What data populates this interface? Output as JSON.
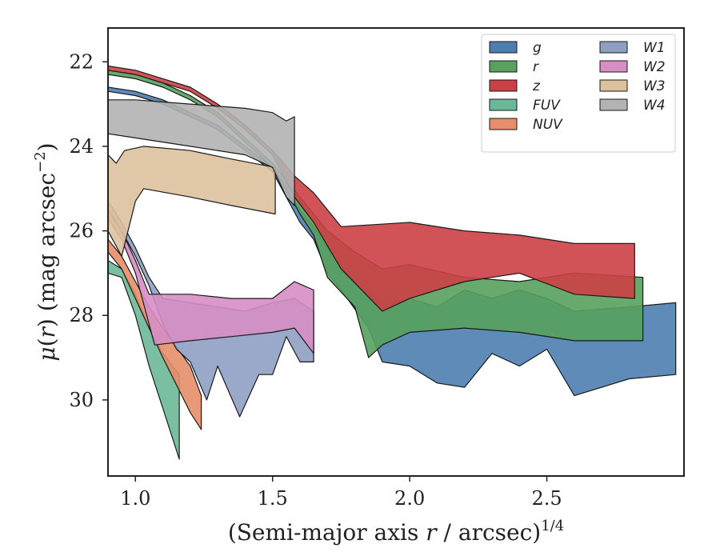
{
  "chart_data": {
    "type": "area",
    "xlabel": "(Semi-major axis r / arcsec)^1/4",
    "ylabel": "μ(r) (mag arcsec^-2)",
    "xlim": [
      0.9,
      3.0
    ],
    "ylim": [
      31.8,
      21.2
    ],
    "y_inverted": true,
    "xticks": [
      1.0,
      1.5,
      2.0,
      2.5
    ],
    "yticks": [
      22,
      24,
      26,
      28,
      30
    ],
    "grid": false,
    "legend": "top-right, 2 columns",
    "series": [
      {
        "name": "g",
        "color": "#4c7eb0",
        "upper": [
          [
            0.9,
            22.6
          ],
          [
            1.0,
            22.7
          ],
          [
            1.1,
            22.9
          ],
          [
            1.2,
            23.2
          ],
          [
            1.3,
            23.5
          ],
          [
            1.4,
            24.0
          ],
          [
            1.5,
            24.5
          ],
          [
            1.55,
            25.0
          ],
          [
            1.6,
            25.5
          ],
          [
            1.65,
            25.9
          ],
          [
            1.7,
            26.4
          ],
          [
            1.75,
            26.8
          ],
          [
            1.85,
            27.4
          ],
          [
            1.9,
            27.7
          ],
          [
            2.0,
            27.6
          ],
          [
            2.1,
            27.8
          ],
          [
            2.2,
            27.4
          ],
          [
            2.3,
            27.6
          ],
          [
            2.4,
            27.4
          ],
          [
            2.5,
            27.6
          ],
          [
            2.6,
            27.9
          ],
          [
            2.8,
            27.8
          ],
          [
            2.97,
            27.7
          ]
        ],
        "lower": [
          [
            0.9,
            22.7
          ],
          [
            1.0,
            22.8
          ],
          [
            1.1,
            23.0
          ],
          [
            1.2,
            23.3
          ],
          [
            1.3,
            23.6
          ],
          [
            1.4,
            24.1
          ],
          [
            1.5,
            24.6
          ],
          [
            1.55,
            25.2
          ],
          [
            1.6,
            25.8
          ],
          [
            1.65,
            26.2
          ],
          [
            1.7,
            27.0
          ],
          [
            1.75,
            27.4
          ],
          [
            1.85,
            28.3
          ],
          [
            1.9,
            29.1
          ],
          [
            2.0,
            29.2
          ],
          [
            2.1,
            29.6
          ],
          [
            2.2,
            29.7
          ],
          [
            2.3,
            28.9
          ],
          [
            2.4,
            29.2
          ],
          [
            2.5,
            28.8
          ],
          [
            2.6,
            29.9
          ],
          [
            2.8,
            29.5
          ],
          [
            2.97,
            29.4
          ]
        ]
      },
      {
        "name": "r",
        "color": "#58a15e",
        "upper": [
          [
            0.9,
            22.2
          ],
          [
            1.0,
            22.3
          ],
          [
            1.1,
            22.5
          ],
          [
            1.2,
            22.8
          ],
          [
            1.3,
            23.2
          ],
          [
            1.4,
            23.8
          ],
          [
            1.5,
            24.4
          ],
          [
            1.55,
            24.8
          ],
          [
            1.6,
            25.2
          ],
          [
            1.65,
            25.6
          ],
          [
            1.7,
            26.0
          ],
          [
            1.8,
            26.5
          ],
          [
            1.9,
            26.9
          ],
          [
            2.0,
            26.8
          ],
          [
            2.2,
            27.1
          ],
          [
            2.4,
            27.2
          ],
          [
            2.6,
            27.0
          ],
          [
            2.85,
            27.1
          ]
        ],
        "lower": [
          [
            0.9,
            22.3
          ],
          [
            1.0,
            22.4
          ],
          [
            1.1,
            22.6
          ],
          [
            1.2,
            22.9
          ],
          [
            1.3,
            23.3
          ],
          [
            1.4,
            23.9
          ],
          [
            1.5,
            24.5
          ],
          [
            1.55,
            25.0
          ],
          [
            1.6,
            25.6
          ],
          [
            1.65,
            26.1
          ],
          [
            1.7,
            27.1
          ],
          [
            1.8,
            27.8
          ],
          [
            1.85,
            29.0
          ],
          [
            1.9,
            28.7
          ],
          [
            2.0,
            28.4
          ],
          [
            2.2,
            28.3
          ],
          [
            2.4,
            28.4
          ],
          [
            2.6,
            28.6
          ],
          [
            2.85,
            28.6
          ]
        ]
      },
      {
        "name": "z",
        "color": "#cc4045",
        "upper": [
          [
            0.9,
            22.1
          ],
          [
            1.0,
            22.2
          ],
          [
            1.1,
            22.4
          ],
          [
            1.2,
            22.6
          ],
          [
            1.3,
            23.0
          ],
          [
            1.4,
            23.5
          ],
          [
            1.5,
            24.1
          ],
          [
            1.58,
            24.7
          ],
          [
            1.65,
            25.1
          ],
          [
            1.75,
            25.9
          ],
          [
            2.0,
            25.8
          ],
          [
            2.2,
            26.0
          ],
          [
            2.4,
            26.1
          ],
          [
            2.6,
            26.3
          ],
          [
            2.82,
            26.3
          ]
        ],
        "lower": [
          [
            0.9,
            22.2
          ],
          [
            1.0,
            22.3
          ],
          [
            1.1,
            22.5
          ],
          [
            1.2,
            22.7
          ],
          [
            1.3,
            23.1
          ],
          [
            1.4,
            23.6
          ],
          [
            1.5,
            24.2
          ],
          [
            1.58,
            25.2
          ],
          [
            1.65,
            25.8
          ],
          [
            1.75,
            26.9
          ],
          [
            1.9,
            27.9
          ],
          [
            2.0,
            27.6
          ],
          [
            2.2,
            27.2
          ],
          [
            2.4,
            27.0
          ],
          [
            2.6,
            27.5
          ],
          [
            2.82,
            27.6
          ]
        ]
      },
      {
        "name": "FUV",
        "color": "#6bb898",
        "upper": [
          [
            0.9,
            26.7
          ],
          [
            0.95,
            26.9
          ],
          [
            1.0,
            27.5
          ],
          [
            1.05,
            28.3
          ],
          [
            1.1,
            28.9
          ],
          [
            1.16,
            29.4
          ]
        ],
        "lower": [
          [
            0.9,
            27.0
          ],
          [
            0.95,
            27.1
          ],
          [
            1.0,
            28.0
          ],
          [
            1.05,
            29.2
          ],
          [
            1.1,
            30.2
          ],
          [
            1.16,
            31.4
          ]
        ]
      },
      {
        "name": "NUV",
        "color": "#e68e69",
        "upper": [
          [
            0.9,
            26.2
          ],
          [
            0.95,
            26.6
          ],
          [
            1.0,
            27.2
          ],
          [
            1.05,
            27.8
          ],
          [
            1.1,
            28.3
          ],
          [
            1.2,
            29.2
          ],
          [
            1.24,
            29.9
          ]
        ],
        "lower": [
          [
            0.9,
            26.5
          ],
          [
            0.95,
            26.9
          ],
          [
            1.0,
            27.6
          ],
          [
            1.05,
            28.3
          ],
          [
            1.1,
            29.0
          ],
          [
            1.2,
            30.3
          ],
          [
            1.24,
            30.7
          ]
        ]
      },
      {
        "name": "W1",
        "color": "#8f9fc4",
        "upper": [
          [
            0.9,
            25.3
          ],
          [
            0.95,
            25.8
          ],
          [
            1.0,
            26.4
          ],
          [
            1.05,
            27.1
          ],
          [
            1.1,
            27.6
          ],
          [
            1.2,
            27.7
          ],
          [
            1.3,
            27.8
          ],
          [
            1.4,
            27.9
          ],
          [
            1.5,
            27.7
          ],
          [
            1.58,
            27.6
          ],
          [
            1.65,
            27.9
          ]
        ],
        "lower": [
          [
            0.9,
            25.5
          ],
          [
            0.95,
            26.0
          ],
          [
            1.0,
            26.6
          ],
          [
            1.05,
            27.3
          ],
          [
            1.1,
            28.2
          ],
          [
            1.15,
            28.8
          ],
          [
            1.2,
            29.1
          ],
          [
            1.26,
            30.0
          ],
          [
            1.3,
            29.2
          ],
          [
            1.38,
            30.4
          ],
          [
            1.45,
            29.4
          ],
          [
            1.5,
            29.4
          ],
          [
            1.55,
            28.5
          ],
          [
            1.6,
            29.1
          ],
          [
            1.65,
            29.1
          ]
        ]
      },
      {
        "name": "W2",
        "color": "#d68ec4",
        "upper": [
          [
            0.9,
            25.5
          ],
          [
            0.95,
            26.0
          ],
          [
            1.0,
            26.7
          ],
          [
            1.05,
            27.5
          ],
          [
            1.2,
            27.5
          ],
          [
            1.35,
            27.6
          ],
          [
            1.5,
            27.6
          ],
          [
            1.58,
            27.2
          ],
          [
            1.65,
            27.4
          ]
        ],
        "lower": [
          [
            0.9,
            25.7
          ],
          [
            0.95,
            26.2
          ],
          [
            1.0,
            27.0
          ],
          [
            1.07,
            28.7
          ],
          [
            1.2,
            28.6
          ],
          [
            1.35,
            28.5
          ],
          [
            1.5,
            28.4
          ],
          [
            1.58,
            28.3
          ],
          [
            1.65,
            28.9
          ]
        ]
      },
      {
        "name": "W3",
        "color": "#ddc19d",
        "upper": [
          [
            0.9,
            24.2
          ],
          [
            0.93,
            24.4
          ],
          [
            0.96,
            24.1
          ],
          [
            1.03,
            24.0
          ],
          [
            1.2,
            24.1
          ],
          [
            1.35,
            24.3
          ],
          [
            1.51,
            24.5
          ]
        ],
        "lower": [
          [
            0.9,
            26.0
          ],
          [
            0.95,
            26.6
          ],
          [
            1.0,
            25.3
          ],
          [
            1.03,
            25.0
          ],
          [
            1.2,
            25.2
          ],
          [
            1.35,
            25.4
          ],
          [
            1.51,
            25.6
          ]
        ]
      },
      {
        "name": "W4",
        "color": "#b3b3b3",
        "upper": [
          [
            0.9,
            22.9
          ],
          [
            1.0,
            22.9
          ],
          [
            1.2,
            23.0
          ],
          [
            1.4,
            23.1
          ],
          [
            1.5,
            23.2
          ],
          [
            1.55,
            23.4
          ],
          [
            1.58,
            23.3
          ]
        ],
        "lower": [
          [
            0.9,
            23.7
          ],
          [
            1.0,
            23.8
          ],
          [
            1.2,
            24.0
          ],
          [
            1.4,
            24.2
          ],
          [
            1.5,
            24.5
          ],
          [
            1.55,
            25.2
          ],
          [
            1.58,
            25.4
          ]
        ]
      }
    ]
  }
}
